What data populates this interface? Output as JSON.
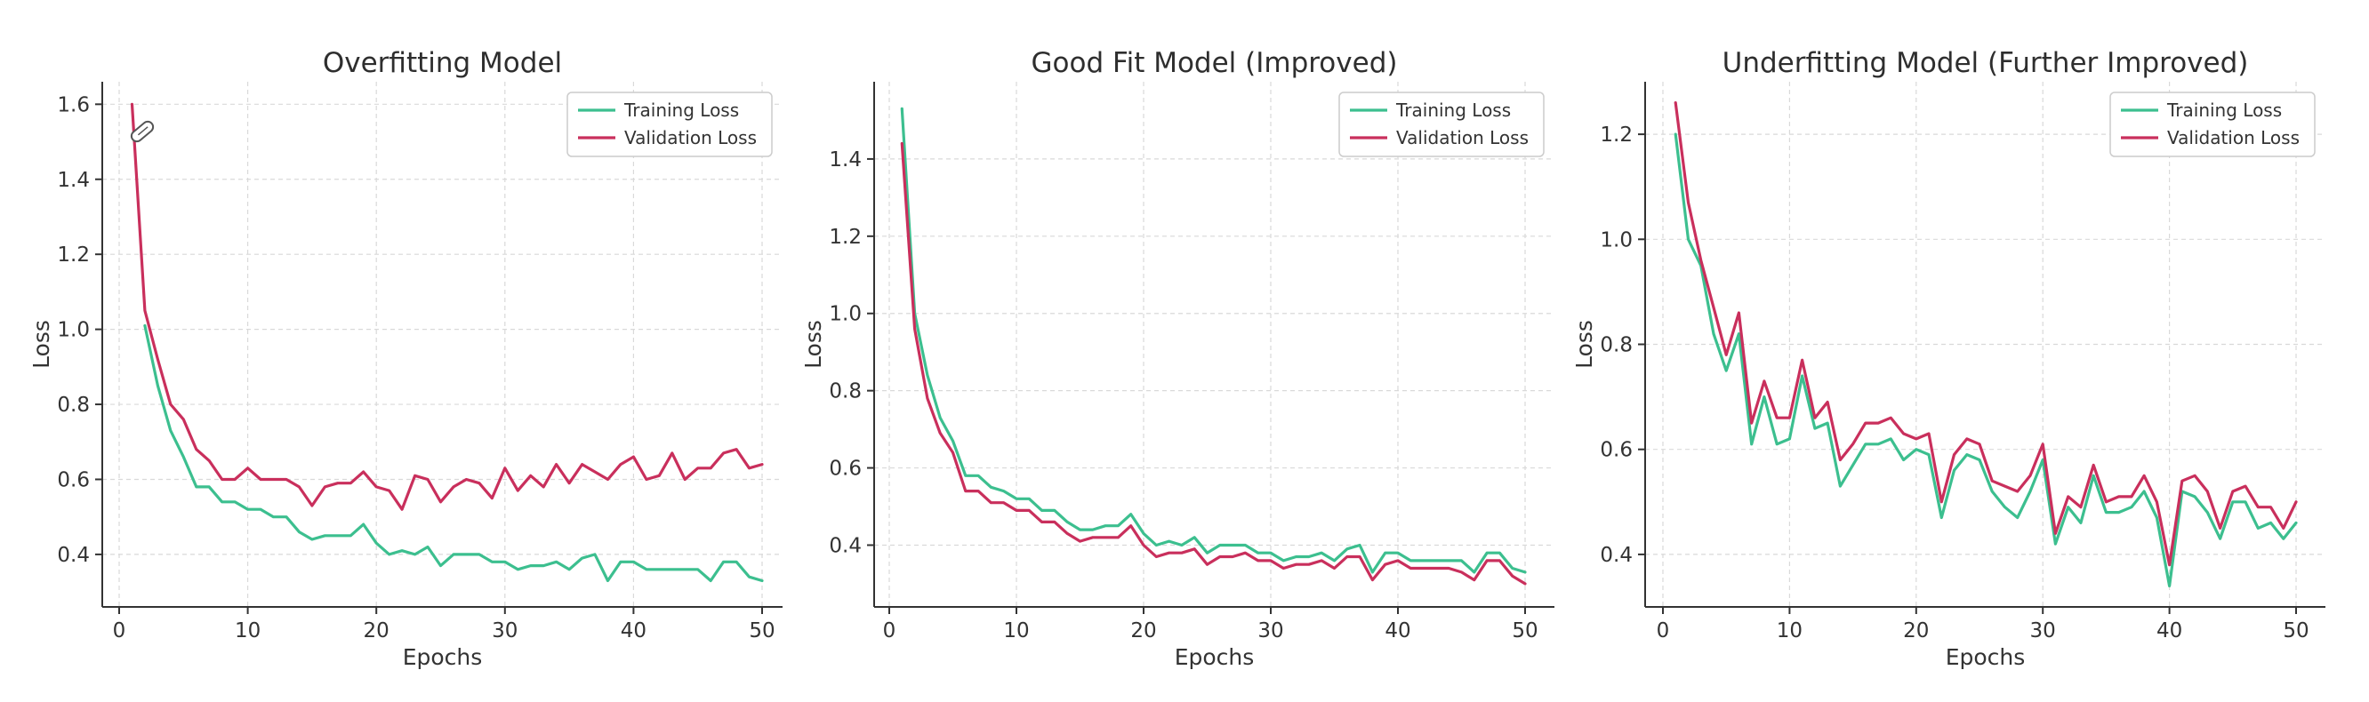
{
  "chart_data": [
    {
      "type": "line",
      "title": "Overfitting Model",
      "xlabel": "Epochs",
      "ylabel": "Loss",
      "xlim": [
        -1,
        52
      ],
      "ylim": [
        0.26,
        1.66
      ],
      "xticks": [
        0,
        10,
        20,
        30,
        40,
        50
      ],
      "yticks": [
        0.4,
        0.6,
        0.8,
        1.0,
        1.2,
        1.4,
        1.6
      ],
      "ytick_labels": [
        "0.4",
        "0.6",
        "0.8",
        "1.0",
        "1.2",
        "1.4",
        "1.6"
      ],
      "grid": true,
      "legend_position": "top-right",
      "series": [
        {
          "name": "Training Loss",
          "color": "#3cbf8f",
          "x": [
            2,
            3,
            4,
            5,
            6,
            7,
            8,
            9,
            10,
            11,
            12,
            13,
            14,
            15,
            16,
            17,
            18,
            19,
            20,
            21,
            22,
            23,
            24,
            25,
            26,
            27,
            28,
            29,
            30,
            31,
            32,
            33,
            34,
            35,
            36,
            37,
            38,
            39,
            40,
            41,
            42,
            43,
            44,
            45,
            46,
            47,
            48,
            49,
            50
          ],
          "values": [
            1.01,
            0.85,
            0.73,
            0.66,
            0.58,
            0.58,
            0.54,
            0.54,
            0.52,
            0.52,
            0.5,
            0.5,
            0.46,
            0.44,
            0.45,
            0.45,
            0.45,
            0.48,
            0.43,
            0.4,
            0.41,
            0.4,
            0.42,
            0.37,
            0.4,
            0.4,
            0.4,
            0.38,
            0.38,
            0.36,
            0.37,
            0.37,
            0.38,
            0.36,
            0.39,
            0.4,
            0.33,
            0.38,
            0.38,
            0.36,
            0.36,
            0.36,
            0.36,
            0.36,
            0.33,
            0.38,
            0.38,
            0.34,
            0.33
          ]
        },
        {
          "name": "Validation Loss",
          "color": "#c92f5c",
          "x": [
            1,
            2,
            3,
            4,
            5,
            6,
            7,
            8,
            9,
            10,
            11,
            12,
            13,
            14,
            15,
            16,
            17,
            18,
            19,
            20,
            21,
            22,
            23,
            24,
            25,
            26,
            27,
            28,
            29,
            30,
            31,
            32,
            33,
            34,
            35,
            36,
            37,
            38,
            39,
            40,
            41,
            42,
            43,
            44,
            45,
            46,
            47,
            48,
            49,
            50
          ],
          "values": [
            1.6,
            1.05,
            0.92,
            0.8,
            0.76,
            0.68,
            0.65,
            0.6,
            0.6,
            0.63,
            0.6,
            0.6,
            0.6,
            0.58,
            0.53,
            0.58,
            0.59,
            0.59,
            0.62,
            0.58,
            0.57,
            0.52,
            0.61,
            0.6,
            0.54,
            0.58,
            0.6,
            0.59,
            0.55,
            0.63,
            0.57,
            0.61,
            0.58,
            0.64,
            0.59,
            0.64,
            0.62,
            0.6,
            0.64,
            0.66,
            0.6,
            0.61,
            0.67,
            0.6,
            0.63,
            0.63,
            0.67,
            0.68,
            0.63,
            0.64
          ]
        }
      ]
    },
    {
      "type": "line",
      "title": "Good Fit Model (Improved)",
      "xlabel": "Epochs",
      "ylabel": "Loss",
      "xlim": [
        -1,
        52
      ],
      "ylim": [
        0.24,
        1.6
      ],
      "xticks": [
        0,
        10,
        20,
        30,
        40,
        50
      ],
      "yticks": [
        0.4,
        0.6,
        0.8,
        1.0,
        1.2,
        1.4
      ],
      "ytick_labels": [
        "0.4",
        "0.6",
        "0.8",
        "1.0",
        "1.2",
        "1.4"
      ],
      "grid": true,
      "legend_position": "top-right",
      "series": [
        {
          "name": "Training Loss",
          "color": "#3cbf8f",
          "x": [
            1,
            2,
            3,
            4,
            5,
            6,
            7,
            8,
            9,
            10,
            11,
            12,
            13,
            14,
            15,
            16,
            17,
            18,
            19,
            20,
            21,
            22,
            23,
            24,
            25,
            26,
            27,
            28,
            29,
            30,
            31,
            32,
            33,
            34,
            35,
            36,
            37,
            38,
            39,
            40,
            41,
            42,
            43,
            44,
            45,
            46,
            47,
            48,
            49,
            50
          ],
          "values": [
            1.53,
            1.0,
            0.84,
            0.73,
            0.67,
            0.58,
            0.58,
            0.55,
            0.54,
            0.52,
            0.52,
            0.49,
            0.49,
            0.46,
            0.44,
            0.44,
            0.45,
            0.45,
            0.48,
            0.43,
            0.4,
            0.41,
            0.4,
            0.42,
            0.38,
            0.4,
            0.4,
            0.4,
            0.38,
            0.38,
            0.36,
            0.37,
            0.37,
            0.38,
            0.36,
            0.39,
            0.4,
            0.33,
            0.38,
            0.38,
            0.36,
            0.36,
            0.36,
            0.36,
            0.36,
            0.33,
            0.38,
            0.38,
            0.34,
            0.33
          ]
        },
        {
          "name": "Validation Loss",
          "color": "#c92f5c",
          "x": [
            1,
            2,
            3,
            4,
            5,
            6,
            7,
            8,
            9,
            10,
            11,
            12,
            13,
            14,
            15,
            16,
            17,
            18,
            19,
            20,
            21,
            22,
            23,
            24,
            25,
            26,
            27,
            28,
            29,
            30,
            31,
            32,
            33,
            34,
            35,
            36,
            37,
            38,
            39,
            40,
            41,
            42,
            43,
            44,
            45,
            46,
            47,
            48,
            49,
            50
          ],
          "values": [
            1.44,
            0.96,
            0.78,
            0.69,
            0.64,
            0.54,
            0.54,
            0.51,
            0.51,
            0.49,
            0.49,
            0.46,
            0.46,
            0.43,
            0.41,
            0.42,
            0.42,
            0.42,
            0.45,
            0.4,
            0.37,
            0.38,
            0.38,
            0.39,
            0.35,
            0.37,
            0.37,
            0.38,
            0.36,
            0.36,
            0.34,
            0.35,
            0.35,
            0.36,
            0.34,
            0.37,
            0.37,
            0.31,
            0.35,
            0.36,
            0.34,
            0.34,
            0.34,
            0.34,
            0.33,
            0.31,
            0.36,
            0.36,
            0.32,
            0.3
          ]
        }
      ]
    },
    {
      "type": "line",
      "title": "Underfitting Model (Further Improved)",
      "xlabel": "Epochs",
      "ylabel": "Loss",
      "xlim": [
        -1,
        52
      ],
      "ylim": [
        0.3,
        1.3
      ],
      "xticks": [
        0,
        10,
        20,
        30,
        40,
        50
      ],
      "yticks": [
        0.4,
        0.6,
        0.8,
        1.0,
        1.2
      ],
      "ytick_labels": [
        "0.4",
        "0.6",
        "0.8",
        "1.0",
        "1.2"
      ],
      "grid": true,
      "legend_position": "top-right",
      "series": [
        {
          "name": "Training Loss",
          "color": "#3cbf8f",
          "x": [
            1,
            2,
            3,
            4,
            5,
            6,
            7,
            8,
            9,
            10,
            11,
            12,
            13,
            14,
            15,
            16,
            17,
            18,
            19,
            20,
            21,
            22,
            23,
            24,
            25,
            26,
            27,
            28,
            29,
            30,
            31,
            32,
            33,
            34,
            35,
            36,
            37,
            38,
            39,
            40,
            41,
            42,
            43,
            44,
            45,
            46,
            47,
            48,
            49,
            50
          ],
          "values": [
            1.2,
            1.0,
            0.95,
            0.82,
            0.75,
            0.82,
            0.61,
            0.7,
            0.61,
            0.62,
            0.74,
            0.64,
            0.65,
            0.53,
            0.57,
            0.61,
            0.61,
            0.62,
            0.58,
            0.6,
            0.59,
            0.47,
            0.56,
            0.59,
            0.58,
            0.52,
            0.49,
            0.47,
            0.52,
            0.58,
            0.42,
            0.49,
            0.46,
            0.55,
            0.48,
            0.48,
            0.49,
            0.52,
            0.47,
            0.34,
            0.52,
            0.51,
            0.48,
            0.43,
            0.5,
            0.5,
            0.45,
            0.46,
            0.43,
            0.46
          ]
        },
        {
          "name": "Validation Loss",
          "color": "#c92f5c",
          "x": [
            1,
            2,
            3,
            4,
            5,
            6,
            7,
            8,
            9,
            10,
            11,
            12,
            13,
            14,
            15,
            16,
            17,
            18,
            19,
            20,
            21,
            22,
            23,
            24,
            25,
            26,
            27,
            28,
            29,
            30,
            31,
            32,
            33,
            34,
            35,
            36,
            37,
            38,
            39,
            40,
            41,
            42,
            43,
            44,
            45,
            46,
            47,
            48,
            49,
            50
          ],
          "values": [
            1.26,
            1.07,
            0.96,
            0.87,
            0.78,
            0.86,
            0.65,
            0.73,
            0.66,
            0.66,
            0.77,
            0.66,
            0.69,
            0.58,
            0.61,
            0.65,
            0.65,
            0.66,
            0.63,
            0.62,
            0.63,
            0.5,
            0.59,
            0.62,
            0.61,
            0.54,
            0.53,
            0.52,
            0.55,
            0.61,
            0.44,
            0.51,
            0.49,
            0.57,
            0.5,
            0.51,
            0.51,
            0.55,
            0.5,
            0.38,
            0.54,
            0.55,
            0.52,
            0.45,
            0.52,
            0.53,
            0.49,
            0.49,
            0.45,
            0.5
          ]
        }
      ]
    }
  ]
}
